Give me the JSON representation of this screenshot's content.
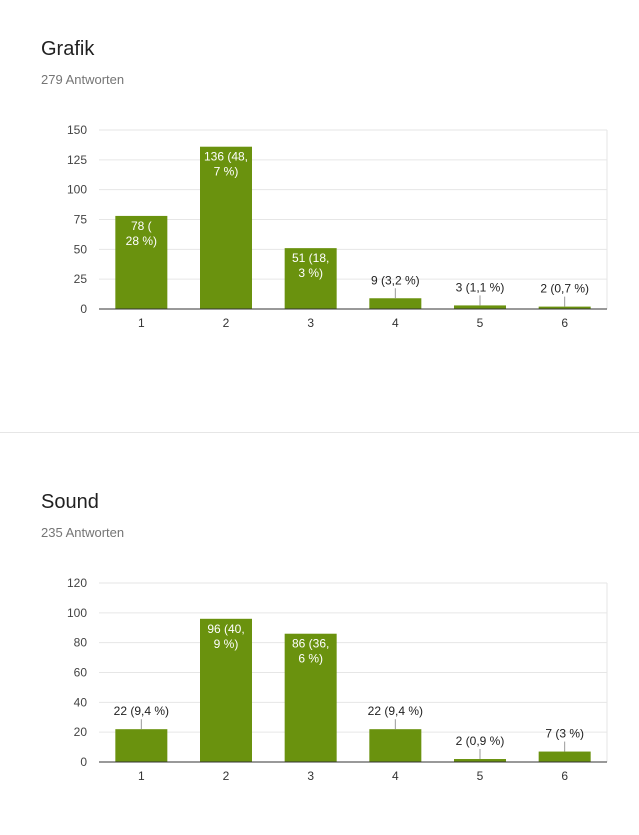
{
  "colors": {
    "bar": "#6a920e",
    "grid": "#e6e6e6",
    "axis": "#333333",
    "label_inside": "#ffffff",
    "label_outside": "#222222",
    "leader": "#999999"
  },
  "questions": [
    {
      "title": "Grafik",
      "responses": "279 Antworten"
    },
    {
      "title": "Sound",
      "responses": "235 Antworten"
    }
  ],
  "chart_data": [
    {
      "type": "bar",
      "categories": [
        "1",
        "2",
        "3",
        "4",
        "5",
        "6"
      ],
      "values": [
        78,
        136,
        51,
        9,
        3,
        2
      ],
      "labels": [
        [
          "78 (",
          "28 %)"
        ],
        [
          "136 (48,",
          "7 %)"
        ],
        [
          "51 (18,",
          "3 %)"
        ],
        [
          "9 (3,2 %)"
        ],
        [
          "3 (1,1 %)"
        ],
        [
          "2 (0,7 %)"
        ]
      ],
      "yticks": [
        "0",
        "25",
        "50",
        "75",
        "100",
        "125",
        "150"
      ],
      "ylim": [
        0,
        150
      ],
      "grid": true
    },
    {
      "type": "bar",
      "categories": [
        "1",
        "2",
        "3",
        "4",
        "5",
        "6"
      ],
      "values": [
        22,
        96,
        86,
        22,
        2,
        7
      ],
      "labels": [
        [
          "22 (9,4 %)"
        ],
        [
          "96 (40,",
          "9 %)"
        ],
        [
          "86 (36,",
          "6 %)"
        ],
        [
          "22 (9,4 %)"
        ],
        [
          "2 (0,9 %)"
        ],
        [
          "7 (3 %)"
        ]
      ],
      "yticks": [
        "0",
        "20",
        "40",
        "60",
        "80",
        "100",
        "120"
      ],
      "ylim": [
        0,
        120
      ],
      "grid": true
    }
  ]
}
